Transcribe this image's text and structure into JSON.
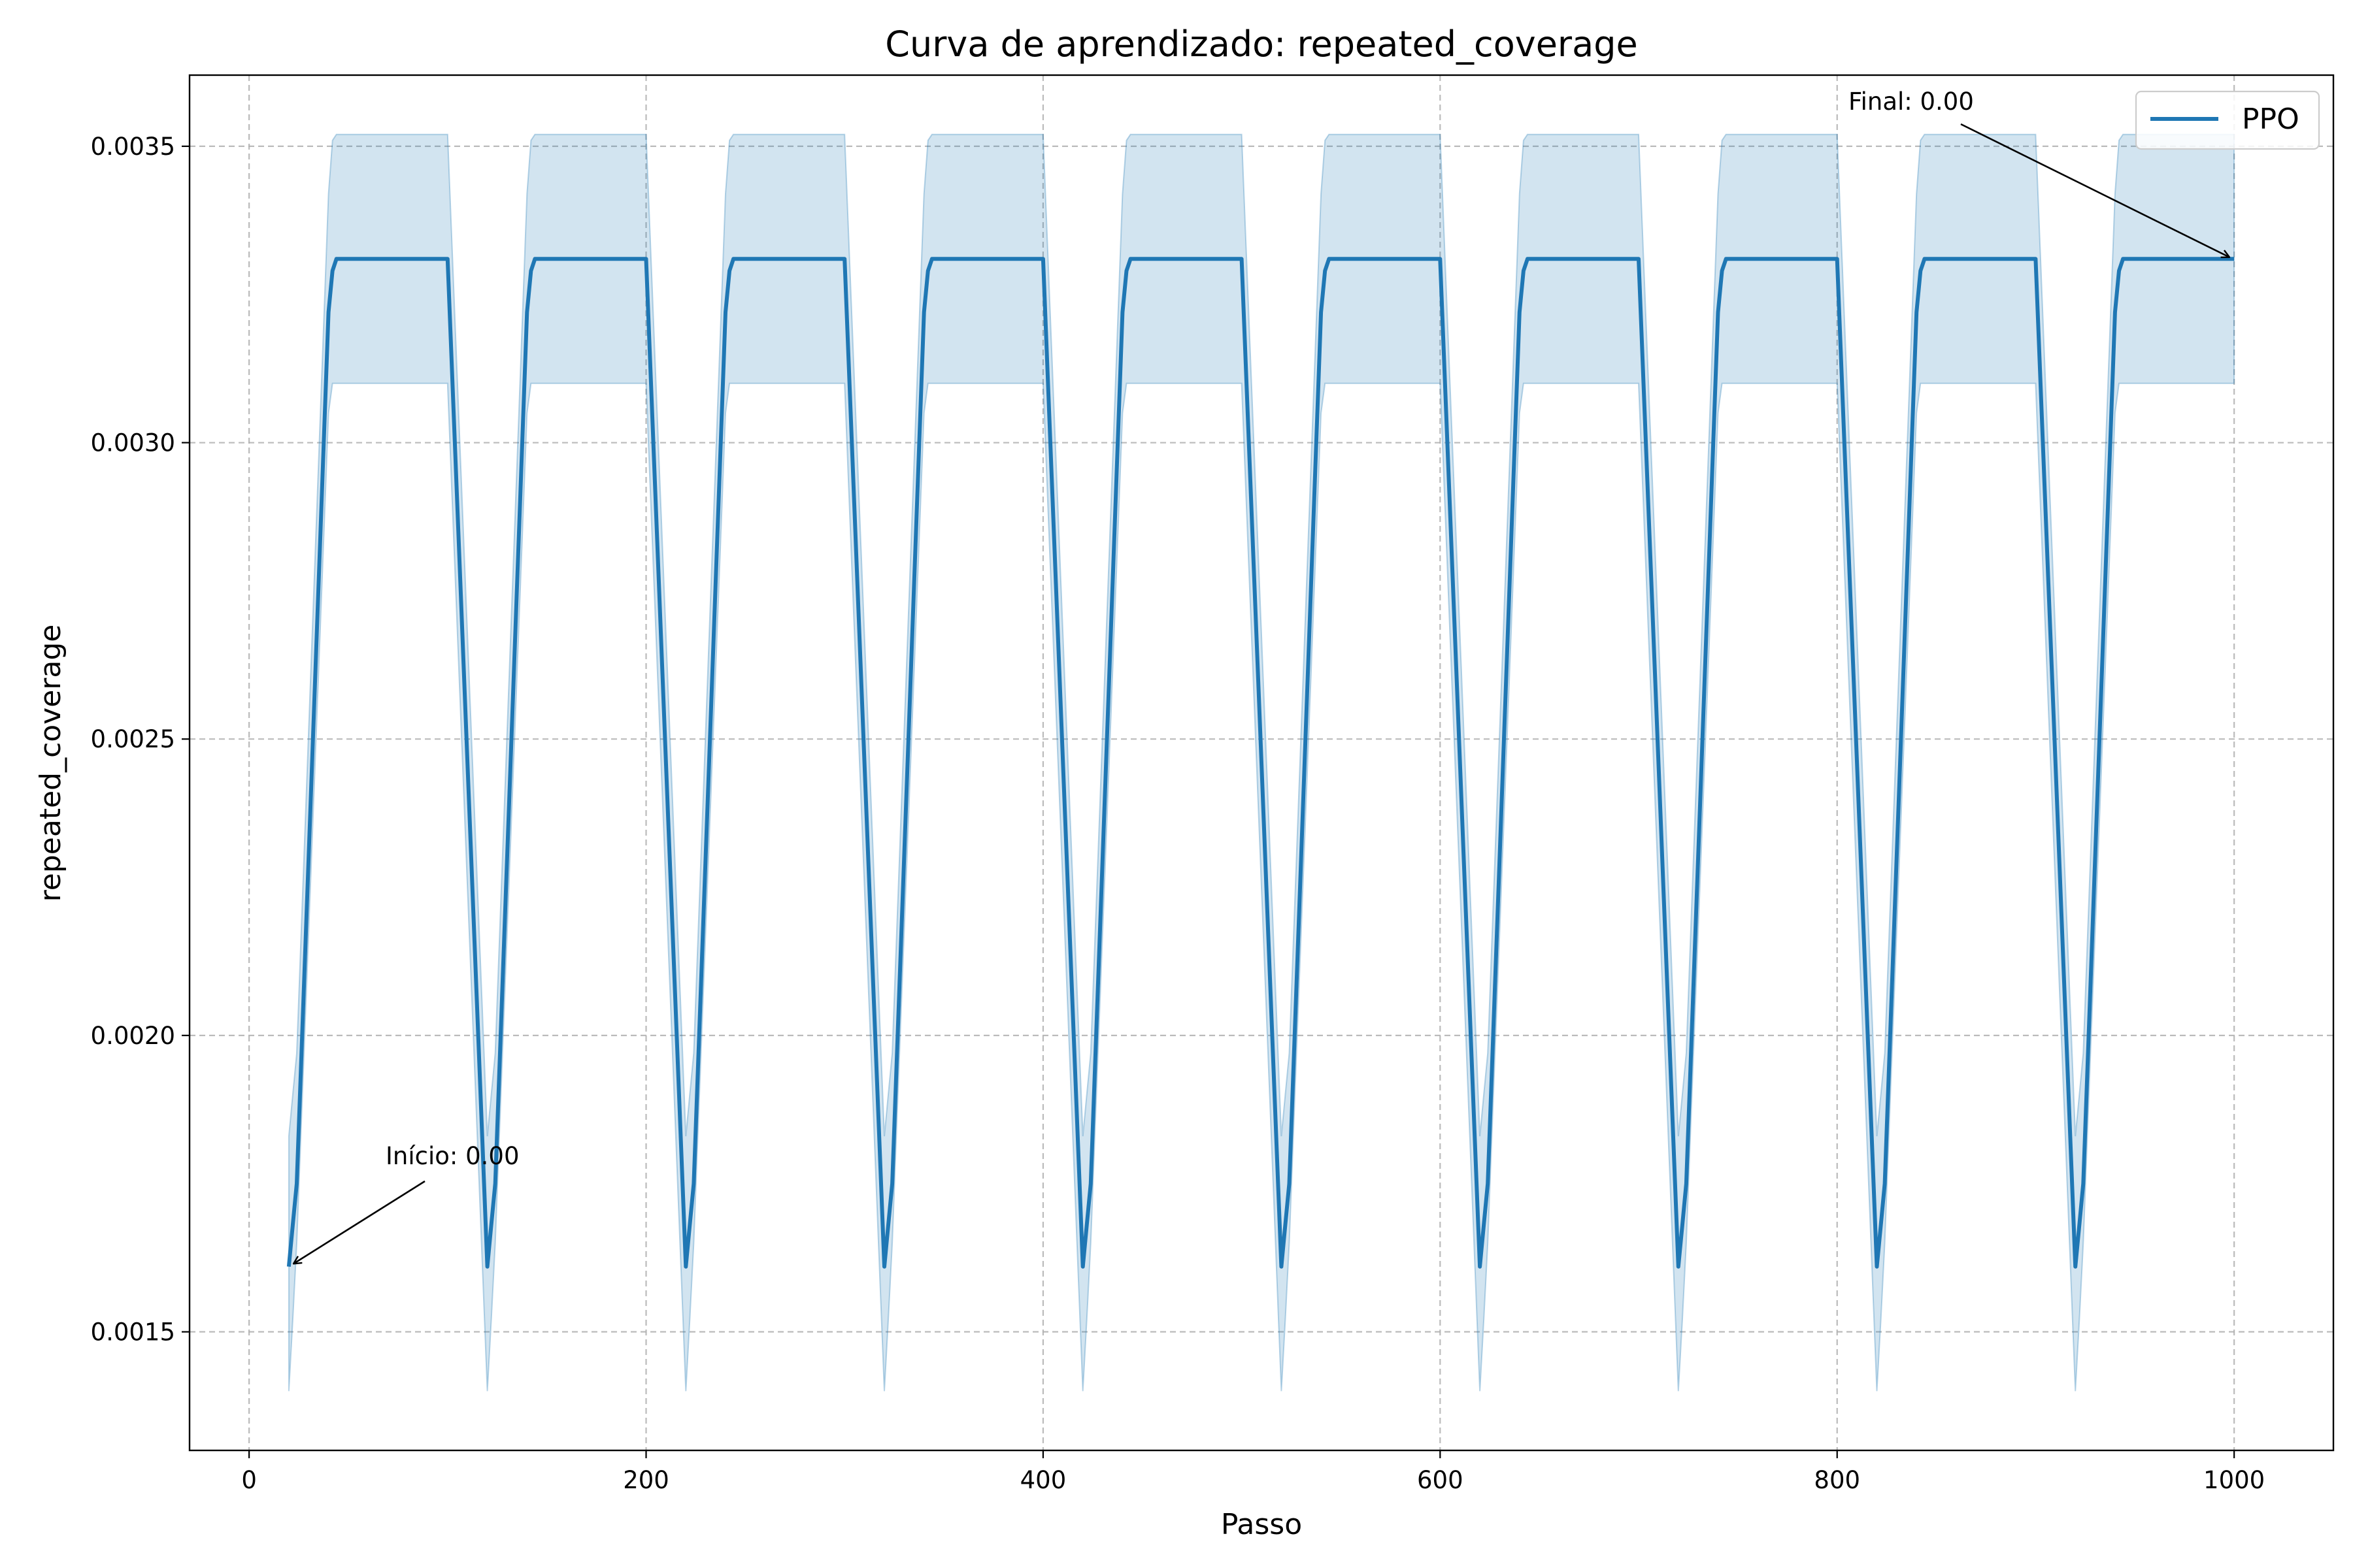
{
  "chart_data": {
    "type": "line",
    "title": "Curva de aprendizado: repeated_coverage",
    "xlabel": "Passo",
    "ylabel": "repeated_coverage",
    "xlim": [
      -30,
      1050
    ],
    "ylim": [
      0.0013,
      0.00362
    ],
    "xticks": [
      0,
      200,
      400,
      600,
      800,
      1000
    ],
    "xtick_labels": [
      "0",
      "200",
      "400",
      "600",
      "800",
      "1000"
    ],
    "yticks": [
      0.0015,
      0.002,
      0.0025,
      0.003,
      0.0035
    ],
    "ytick_labels": [
      "0.0015",
      "0.0020",
      "0.0025",
      "0.0030",
      "0.0035"
    ],
    "grid": true,
    "legend": {
      "position": "top-right",
      "entries": [
        "PPO"
      ]
    },
    "colors": {
      "line": "#1f77b4",
      "band": "#1f77b4"
    },
    "series": [
      {
        "name": "PPO",
        "band_type": "shaded",
        "period": 100,
        "periods": 10,
        "cycle_x": [
          20,
          22,
          24,
          40,
          42,
          44,
          100,
          120
        ],
        "cycle_mean": [
          0.00161,
          0.00168,
          0.00175,
          0.00322,
          0.00329,
          0.00331,
          0.00331,
          0.00161
        ],
        "cycle_lower": [
          0.0014,
          0.00152,
          0.00165,
          0.00305,
          0.0031,
          0.0031,
          0.0031,
          0.0014
        ],
        "cycle_upper": [
          0.00183,
          0.0019,
          0.00197,
          0.00342,
          0.00351,
          0.00352,
          0.00352,
          0.00183
        ],
        "last_x": 1000,
        "last_mean": 0.00331,
        "last_lower": 0.0031,
        "last_upper": 0.00352
      }
    ],
    "annotations": [
      {
        "text": "Início: 0.00",
        "point": [
          20,
          0.00161
        ]
      },
      {
        "text": "Final: 0.00",
        "point": [
          1000,
          0.00331
        ]
      }
    ]
  }
}
